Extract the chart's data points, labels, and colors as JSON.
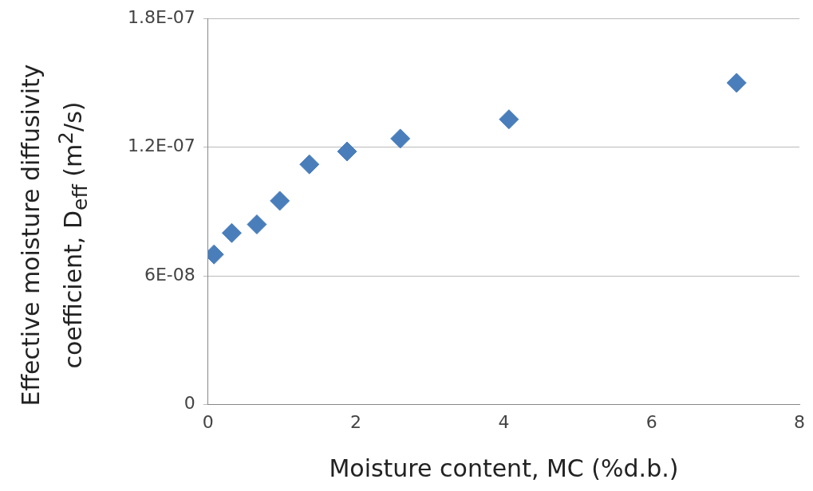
{
  "chart_data": {
    "type": "scatter",
    "xlabel": "Moisture content, MC (%d.b.)",
    "ylabel": "Effective moisture diffusivity coefficient, D$_{eff}$  (m$^{2}$/s)",
    "x": [
      0.08,
      0.32,
      0.66,
      0.97,
      1.37,
      1.88,
      2.6,
      4.07,
      7.15
    ],
    "values": [
      7e-08,
      8e-08,
      8.4e-08,
      9.5e-08,
      1.12e-07,
      1.18e-07,
      1.24e-07,
      1.33e-07,
      1.5e-07
    ],
    "color": "#4a7ebb",
    "marker": "diamond",
    "grid": "y",
    "legend": false,
    "xlim": [
      0,
      8
    ],
    "xticks": [
      0,
      2,
      4,
      6,
      8
    ],
    "ylim": [
      0,
      1.8e-07
    ],
    "yticks": [
      0,
      {
        "value": 6e-08,
        "label": "6E-08"
      },
      {
        "value": 1.2e-07,
        "label": "1.2E-07"
      },
      {
        "value": 1.8e-07,
        "label": "1.8E-07"
      }
    ]
  }
}
